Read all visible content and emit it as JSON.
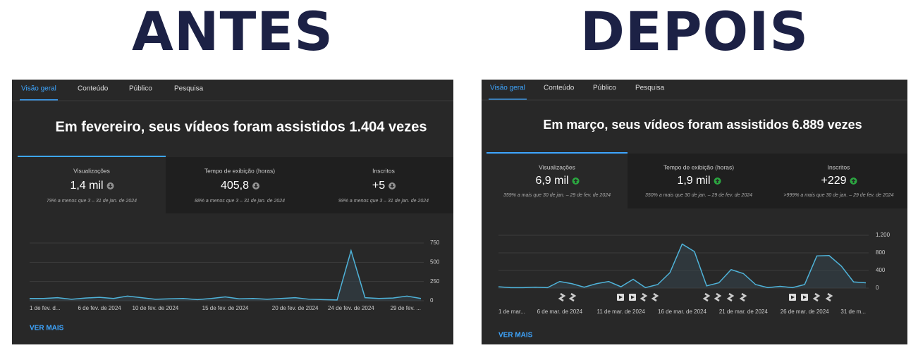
{
  "title_before": "ANTES",
  "title_after": "DEPOIS",
  "panels": [
    {
      "tabs": [
        "Visão geral",
        "Conteúdo",
        "Público",
        "Pesquisa"
      ],
      "headline": "Em fevereiro, seus vídeos foram assistidos 1.404 vezes",
      "metrics": [
        {
          "label": "Visualizações",
          "value": "1,4 mil",
          "trend": "down",
          "change": "79% a menos que 3 – 31 de jan. de 2024"
        },
        {
          "label": "Tempo de exibição (horas)",
          "value": "405,8",
          "trend": "down",
          "change": "88% a menos que 3 – 31 de jan. de 2024"
        },
        {
          "label": "Inscritos",
          "value": "+5",
          "trend": "down",
          "change": "99% a menos que 3 – 31 de jan. de 2024"
        }
      ],
      "chart": {
        "type": "line",
        "color": "#4fb3d9",
        "categories": [
          "1 de fev. d...",
          null,
          null,
          null,
          null,
          "6 de fev. de 2024",
          null,
          null,
          null,
          "10 de fev. de 2024",
          null,
          null,
          null,
          null,
          "15 de fev. de 2024",
          null,
          null,
          null,
          null,
          "20 de fev. de 2024",
          null,
          null,
          null,
          "24 de fev. de 2024",
          null,
          null,
          null,
          null,
          "29 de fev. ..."
        ],
        "values": [
          30,
          30,
          40,
          20,
          35,
          45,
          30,
          60,
          40,
          20,
          25,
          30,
          15,
          30,
          50,
          25,
          30,
          20,
          30,
          40,
          20,
          15,
          10,
          650,
          40,
          30,
          35,
          60,
          30
        ],
        "ylim": [
          0,
          750
        ],
        "yticks": [
          0,
          250,
          500,
          750
        ]
      },
      "link": "VER MAIS"
    },
    {
      "tabs": [
        "Visão geral",
        "Conteúdo",
        "Público",
        "Pesquisa"
      ],
      "headline": "Em março, seus vídeos foram assistidos 6.889 vezes",
      "metrics": [
        {
          "label": "Visualizações",
          "value": "6,9 mil",
          "trend": "up",
          "change": "359% a mais que 30 de jan. – 29 de fev. de 2024"
        },
        {
          "label": "Tempo de exibição (horas)",
          "value": "1,9 mil",
          "trend": "up",
          "change": "350% a mais que 30 de jan. – 29 de fev. de 2024"
        },
        {
          "label": "Inscritos",
          "value": "+229",
          "trend": "up",
          "change": ">999% a mais que 30 de jan. – 29 de fev. de 2024"
        }
      ],
      "chart": {
        "type": "line",
        "color": "#4fb3d9",
        "categories": [
          "1 de mar...",
          null,
          null,
          null,
          null,
          "6 de mar. de 2024",
          null,
          null,
          null,
          null,
          "11 de mar. de 2024",
          null,
          null,
          null,
          null,
          "16 de mar. de 2024",
          null,
          null,
          null,
          null,
          "21 de mar. de 2024",
          null,
          null,
          null,
          null,
          "26 de mar. de 2024",
          null,
          null,
          null,
          null,
          "31 de m..."
        ],
        "values": [
          30,
          10,
          10,
          20,
          10,
          150,
          100,
          20,
          100,
          150,
          30,
          200,
          10,
          80,
          350,
          1000,
          830,
          50,
          120,
          420,
          330,
          80,
          10,
          40,
          10,
          80,
          730,
          740,
          500,
          140,
          120
        ],
        "ylim": [
          0,
          1200
        ],
        "yticks": [
          0,
          400,
          800,
          {
            "value": 1200,
            "label": "1.200"
          }
        ]
      },
      "link": "VER MAIS"
    }
  ]
}
